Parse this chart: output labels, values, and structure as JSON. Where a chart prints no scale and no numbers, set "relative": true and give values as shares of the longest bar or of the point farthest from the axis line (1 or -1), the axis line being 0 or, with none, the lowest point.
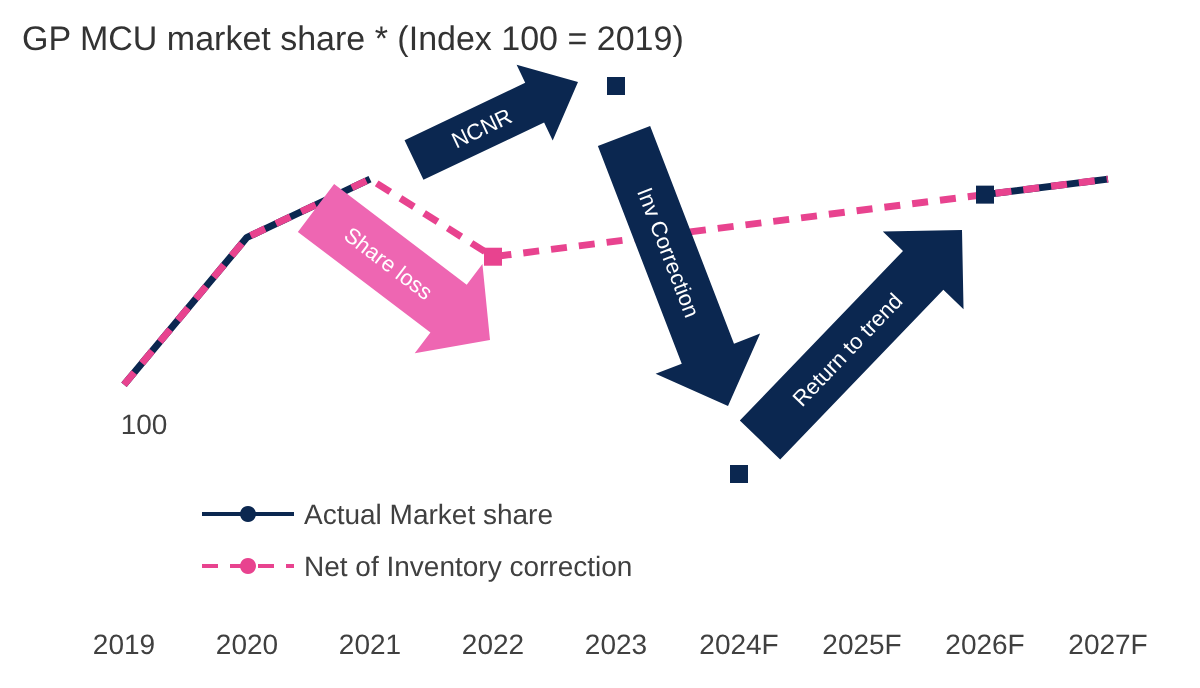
{
  "chart_data": {
    "type": "line",
    "title": "GP MCU market share * (Index 100 = 2019)",
    "relative": true,
    "categories": [
      "2019",
      "2020",
      "2021",
      "2022",
      "2023",
      "2024F",
      "2025F",
      "2026F",
      "2027F"
    ],
    "series": [
      {
        "name": "Actual Market share",
        "color": "#0b2750",
        "line_style": "solid",
        "marker": "none",
        "values": [
          0.23,
          0.61,
          0.76,
          null,
          null,
          null,
          null,
          0.72,
          0.76
        ]
      },
      {
        "name": "Net of Inventory correction",
        "color": "#e8438f",
        "line_style": "dashed",
        "marker": "none",
        "values": [
          0.23,
          0.61,
          0.76,
          0.56,
          null,
          null,
          null,
          0.72,
          0.76
        ]
      },
      {
        "type": "scatter",
        "marker": "square",
        "colors": [
          "#0b2750",
          "#0b2750",
          "#0b2750",
          "#e8438f",
          "#0b2750",
          "#0b2750",
          "#0b2750",
          "#0b2750",
          "#0b2750"
        ],
        "values": [
          null,
          null,
          null,
          0.56,
          1,
          0,
          null,
          0.72,
          null
        ]
      }
    ],
    "annotations": [
      "NCNR",
      "Share loss",
      "Inv Correction",
      "Return to trend",
      "100"
    ],
    "legend": "bottom left",
    "grid": false
  }
}
